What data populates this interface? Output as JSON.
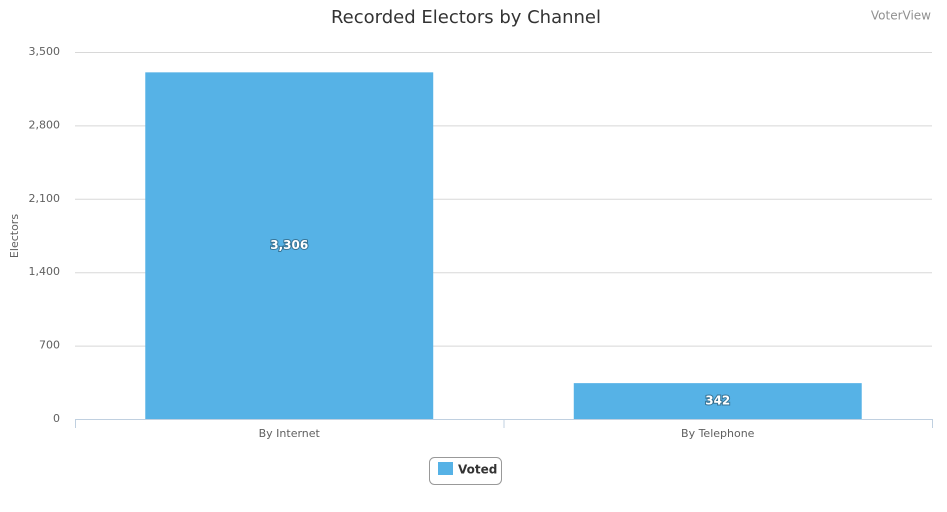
{
  "chart_data": {
    "type": "bar",
    "title": "Recorded Electors by Channel",
    "credit": "VoterView",
    "y_label": "Electors",
    "categories": [
      "By Internet",
      "By Telephone"
    ],
    "series": [
      {
        "name": "Voted",
        "color": "#56b2e6",
        "values": [
          3306,
          342
        ],
        "value_labels": [
          "3,306",
          "342"
        ]
      }
    ],
    "ylim": [
      0,
      3500
    ],
    "yticks": [
      0,
      700,
      {
        "value": 1400,
        "label": "1,400"
      },
      {
        "value": 2100,
        "label": "2,100"
      },
      {
        "value": 2800,
        "label": "2,800"
      },
      {
        "value": 3500,
        "label": "3,500"
      }
    ],
    "grid": true
  }
}
